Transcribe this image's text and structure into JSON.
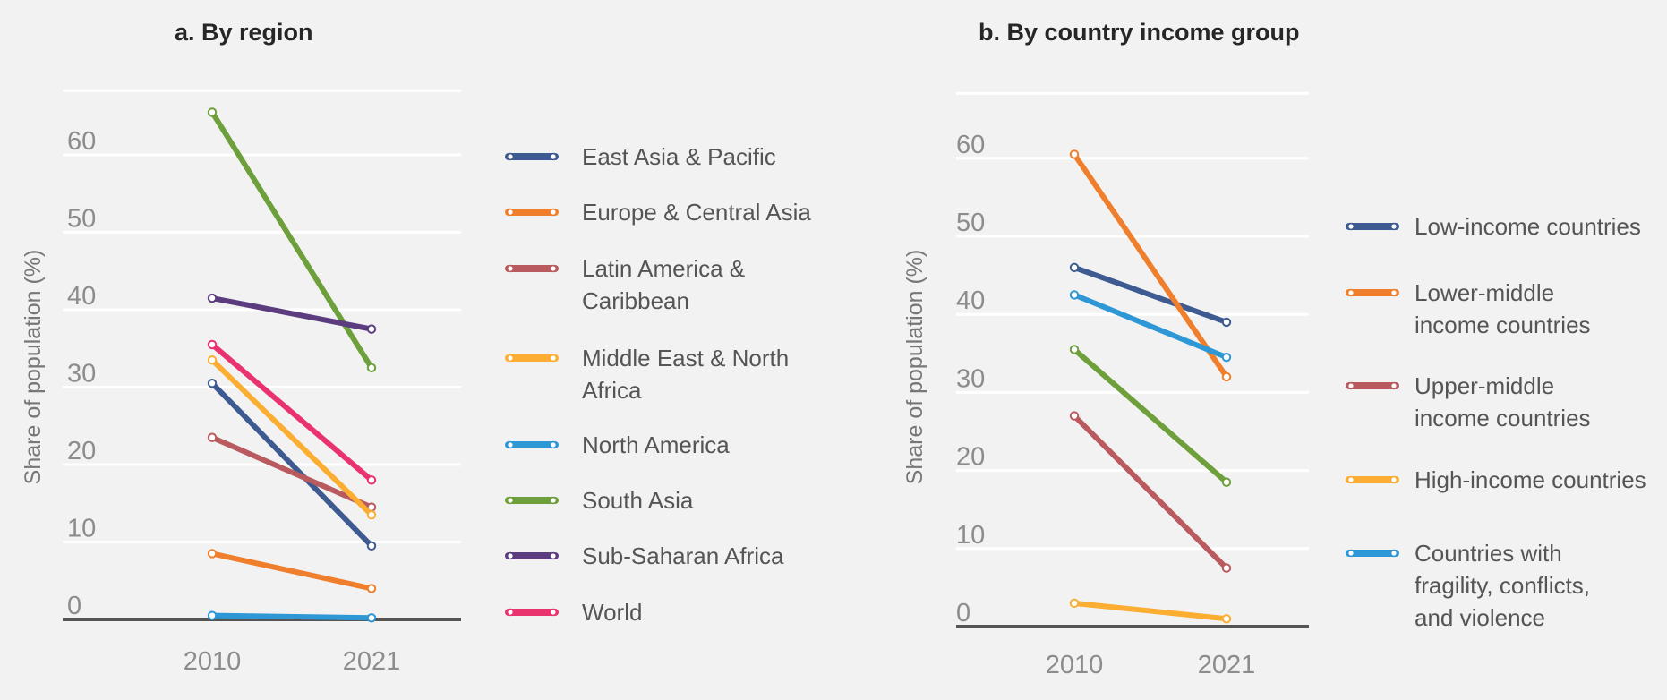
{
  "chart_data": [
    {
      "type": "line",
      "title": "a. By region",
      "ylabel": "Share of population (%)",
      "x": [
        "2010",
        "2021"
      ],
      "yticks": [
        0,
        10,
        20,
        30,
        40,
        50,
        60
      ],
      "ylim": [
        0,
        70
      ],
      "grid": true,
      "legend_position": "right",
      "series": [
        {
          "name": "East Asia & Pacific",
          "color": "#3d5a91",
          "values": [
            30.5,
            9.5
          ]
        },
        {
          "name": "Europe & Central Asia",
          "color": "#f07f2d",
          "values": [
            8.5,
            4
          ]
        },
        {
          "name": "Latin America & Caribbean",
          "color": "#b85a5e",
          "values": [
            23.5,
            14.5
          ]
        },
        {
          "name": "Middle East & North Africa",
          "color": "#fbae32",
          "values": [
            33.5,
            13.5
          ]
        },
        {
          "name": "North America",
          "color": "#2e97d5",
          "values": [
            0.5,
            0.2
          ]
        },
        {
          "name": "South Asia",
          "color": "#6d9f3b",
          "values": [
            65.5,
            32.5
          ]
        },
        {
          "name": "Sub-Saharan Africa",
          "color": "#5b3c7e",
          "values": [
            41.5,
            37.5
          ]
        },
        {
          "name": "World",
          "color": "#e8336f",
          "values": [
            35.5,
            18
          ]
        }
      ]
    },
    {
      "type": "line",
      "title": "b. By country income group",
      "ylabel": "Share of population (%)",
      "x": [
        "2010",
        "2021"
      ],
      "yticks": [
        0,
        10,
        20,
        30,
        40,
        50,
        60
      ],
      "ylim": [
        0,
        70
      ],
      "grid": true,
      "legend_position": "right",
      "series": [
        {
          "name": "Low-income countries",
          "color": "#3d5a91",
          "values": [
            46,
            39
          ]
        },
        {
          "name": "Lower-middle income countries",
          "color": "#f07f2d",
          "values": [
            60.5,
            32
          ]
        },
        {
          "name": "Upper-middle income countries",
          "color": "#b85a5e",
          "values": [
            27,
            7.5
          ]
        },
        {
          "name": "High-income countries",
          "color": "#fbae32",
          "values": [
            3,
            1
          ]
        },
        {
          "name": "Countries with fragility, conflicts, and violence",
          "color": "#2e97d5",
          "values": [
            42.5,
            34.5
          ]
        },
        {
          "color": "#6d9f3b",
          "values": [
            35.5,
            18.5
          ]
        }
      ]
    }
  ],
  "legends": [
    {
      "items": [
        {
          "color": "#3d5a91",
          "lines": [
            "East Asia & Pacific"
          ]
        },
        {
          "color": "#f07f2d",
          "lines": [
            "Europe & Central Asia"
          ]
        },
        {
          "color": "#b85a5e",
          "lines": [
            "Latin America &",
            "Caribbean"
          ]
        },
        {
          "color": "#fbae32",
          "lines": [
            "Middle East & North",
            "Africa"
          ]
        },
        {
          "color": "#2e97d5",
          "lines": [
            "North America"
          ]
        },
        {
          "color": "#6d9f3b",
          "lines": [
            "South Asia"
          ]
        },
        {
          "color": "#5b3c7e",
          "lines": [
            "Sub-Saharan Africa"
          ]
        },
        {
          "color": "#e8336f",
          "lines": [
            "World"
          ]
        }
      ]
    },
    {
      "items": [
        {
          "color": "#3d5a91",
          "lines": [
            "Low-income countries"
          ]
        },
        {
          "color": "#f07f2d",
          "lines": [
            "Lower-middle",
            "income countries"
          ]
        },
        {
          "color": "#b85a5e",
          "lines": [
            "Upper-middle",
            "income countries"
          ]
        },
        {
          "color": "#fbae32",
          "lines": [
            "High-income countries"
          ]
        },
        {
          "color": "#2e97d5",
          "lines": [
            "Countries with",
            "fragility, conflicts,",
            "and violence"
          ]
        }
      ]
    }
  ]
}
